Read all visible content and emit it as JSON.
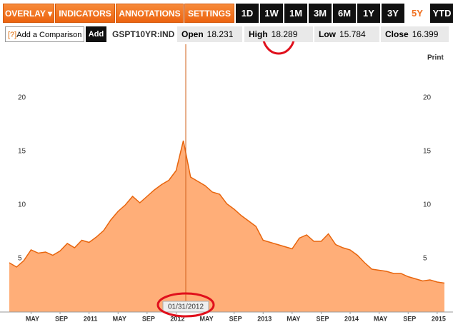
{
  "toolbar": {
    "menus": [
      "OVERLAY",
      "INDICATORS",
      "ANNOTATIONS",
      "SETTINGS"
    ],
    "ranges": [
      "1D",
      "1W",
      "1M",
      "3M",
      "6M",
      "1Y",
      "3Y",
      "5Y",
      "YTD"
    ],
    "selected_range": "5Y"
  },
  "comparison": {
    "help": "[?]",
    "placeholder": "Add a Comparison",
    "button": "Add"
  },
  "quote": {
    "symbol": "GSPT10YR:IND",
    "fields": [
      {
        "label": "Open",
        "value": 18.231
      },
      {
        "label": "High",
        "value": 18.289
      },
      {
        "label": "Low",
        "value": 15.784
      },
      {
        "label": "Close",
        "value": 16.399
      }
    ]
  },
  "print": "Print",
  "crosshair_label": "01/31/2012",
  "chart_data": {
    "type": "area",
    "color": "#e8650d",
    "fill": "#ffae78",
    "x": [
      "2010-02",
      "2010-03",
      "2010-04",
      "2010-05",
      "2010-06",
      "2010-07",
      "2010-08",
      "2010-09",
      "2010-10",
      "2010-11",
      "2010-12",
      "2011-01",
      "2011-02",
      "2011-03",
      "2011-04",
      "2011-05",
      "2011-06",
      "2011-07",
      "2011-08",
      "2011-09",
      "2011-10",
      "2011-11",
      "2011-12",
      "2012-01",
      "2012-02",
      "2012-03",
      "2012-04",
      "2012-05",
      "2012-06",
      "2012-07",
      "2012-08",
      "2012-09",
      "2012-10",
      "2012-11",
      "2012-12",
      "2013-01",
      "2013-02",
      "2013-03",
      "2013-04",
      "2013-05",
      "2013-06",
      "2013-07",
      "2013-08",
      "2013-09",
      "2013-10",
      "2013-11",
      "2013-12",
      "2014-01",
      "2014-02",
      "2014-03",
      "2014-04",
      "2014-05",
      "2014-06",
      "2014-07",
      "2014-08",
      "2014-09",
      "2014-10",
      "2014-11",
      "2014-12",
      "2015-01",
      "2015-02"
    ],
    "values": [
      4.6,
      4.2,
      4.8,
      5.8,
      5.5,
      5.6,
      5.3,
      5.7,
      6.4,
      6.0,
      6.7,
      6.5,
      7.0,
      7.6,
      8.6,
      9.4,
      10.0,
      10.8,
      10.2,
      10.8,
      11.4,
      11.9,
      12.3,
      13.2,
      16.0,
      12.6,
      12.2,
      11.8,
      11.2,
      11.0,
      10.1,
      9.6,
      9.0,
      8.5,
      8.0,
      6.7,
      6.5,
      6.3,
      6.1,
      5.9,
      6.9,
      7.2,
      6.6,
      6.6,
      7.3,
      6.3,
      6.0,
      5.8,
      5.3,
      4.6,
      4.0,
      3.9,
      3.8,
      3.6,
      3.6,
      3.3,
      3.1,
      2.9,
      3.0,
      2.8,
      2.7
    ],
    "xlim": [
      "2010-02",
      "2015-02"
    ],
    "xticks": [
      {
        "value": "2010-05",
        "label": "MAY"
      },
      {
        "value": "2010-09",
        "label": "SEP"
      },
      {
        "value": "2011-01",
        "label": "2011"
      },
      {
        "value": "2011-05",
        "label": "MAY"
      },
      {
        "value": "2011-09",
        "label": "SEP"
      },
      {
        "value": "2012-01",
        "label": "2012"
      },
      {
        "value": "2012-05",
        "label": "MAY"
      },
      {
        "value": "2012-09",
        "label": "SEP"
      },
      {
        "value": "2013-01",
        "label": "2013"
      },
      {
        "value": "2013-05",
        "label": "MAY"
      },
      {
        "value": "2013-09",
        "label": "SEP"
      },
      {
        "value": "2014-01",
        "label": "2014"
      },
      {
        "value": "2014-05",
        "label": "MAY"
      },
      {
        "value": "2014-09",
        "label": "SEP"
      },
      {
        "value": "2015-01",
        "label": "2015"
      }
    ],
    "ylim": [
      0,
      25
    ],
    "yticks": [
      5,
      10,
      15,
      20
    ]
  }
}
